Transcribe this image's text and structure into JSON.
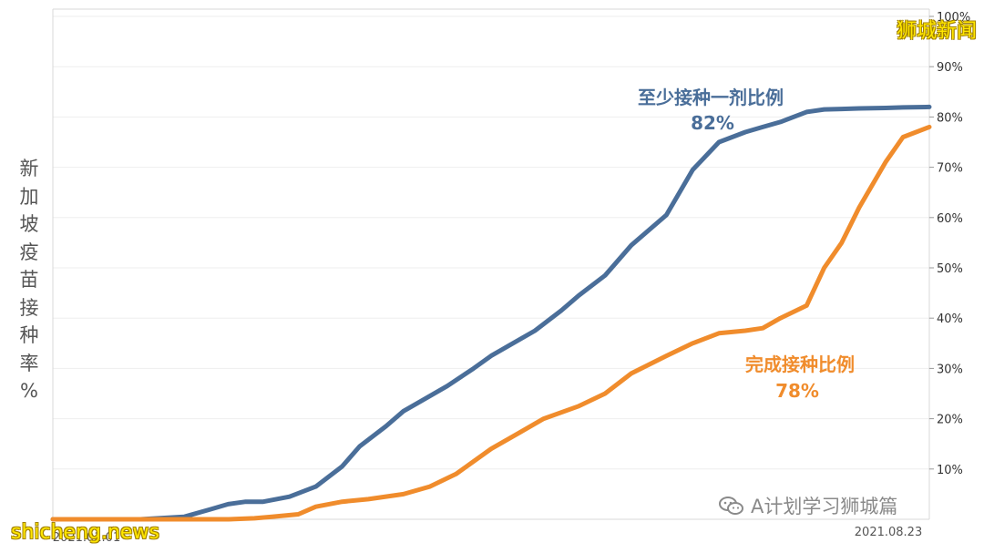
{
  "chart_data": {
    "type": "line",
    "ylabel": "新加坡疫苗接种率%",
    "ylim": [
      0,
      100
    ],
    "yticks": [
      "10%",
      "20%",
      "30%",
      "40%",
      "50%",
      "60%",
      "70%",
      "80%",
      "90%",
      "100%"
    ],
    "ytick_values": [
      10,
      20,
      30,
      40,
      50,
      60,
      70,
      80,
      90,
      100
    ],
    "x_start_label": "2021.01.01",
    "x_end_label": "2021.08.23",
    "grid": true,
    "series": [
      {
        "name": "至少接种一剂比例",
        "value_label": "82%",
        "color": "#4a6e99",
        "x": [
          0,
          0.05,
          0.1,
          0.15,
          0.18,
          0.2,
          0.22,
          0.24,
          0.27,
          0.3,
          0.33,
          0.35,
          0.38,
          0.4,
          0.42,
          0.45,
          0.48,
          0.5,
          0.52,
          0.55,
          0.58,
          0.6,
          0.63,
          0.66,
          0.7,
          0.73,
          0.76,
          0.79,
          0.81,
          0.83,
          0.86,
          0.88,
          0.9,
          0.92,
          0.95,
          0.97,
          1.0
        ],
        "y": [
          0,
          0,
          0,
          0.5,
          2,
          3,
          3.5,
          3.5,
          4.5,
          6.5,
          10.5,
          14.5,
          18.5,
          21.5,
          23.5,
          26.5,
          30,
          32.5,
          34.5,
          37.5,
          41.5,
          44.5,
          48.5,
          54.5,
          60.5,
          69.5,
          75,
          77,
          78,
          79,
          81,
          81.5,
          81.6,
          81.7,
          81.8,
          81.9,
          82
        ]
      },
      {
        "name": "完成接种比例",
        "value_label": "78%",
        "color": "#f08c2c",
        "x": [
          0,
          0.1,
          0.15,
          0.2,
          0.23,
          0.25,
          0.28,
          0.3,
          0.33,
          0.36,
          0.4,
          0.43,
          0.46,
          0.5,
          0.53,
          0.56,
          0.6,
          0.63,
          0.66,
          0.7,
          0.73,
          0.76,
          0.79,
          0.81,
          0.83,
          0.86,
          0.88,
          0.9,
          0.92,
          0.95,
          0.97,
          1.0
        ],
        "y": [
          0,
          0,
          0,
          0,
          0.2,
          0.5,
          1,
          2.5,
          3.5,
          4,
          5,
          6.5,
          9,
          14,
          17,
          20,
          22.5,
          25,
          29,
          32.5,
          35,
          37,
          37.5,
          38,
          40,
          42.5,
          50,
          55,
          62,
          71,
          76,
          78
        ]
      }
    ]
  },
  "watermarks": {
    "brand": "狮城新闻",
    "site": "shicheng.news",
    "wechat": "A计划学习狮城篇"
  }
}
